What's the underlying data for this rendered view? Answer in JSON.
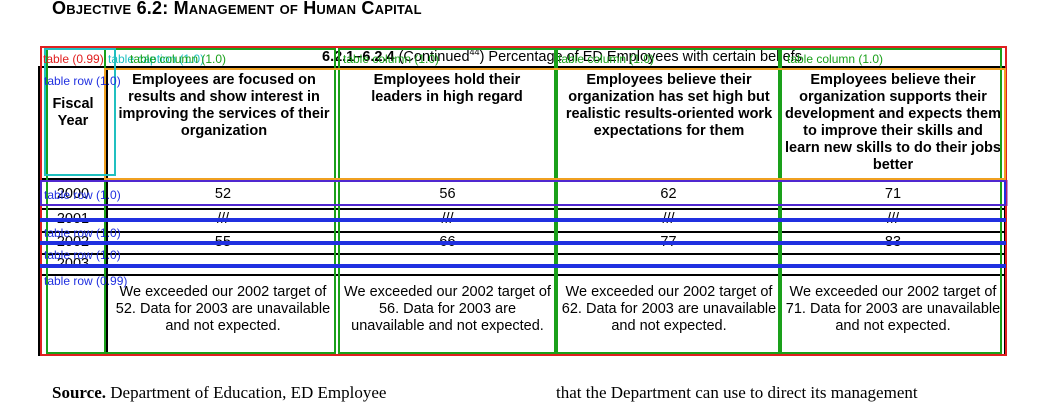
{
  "heading": "Objective 6.2: Management of Human Capital",
  "table": {
    "caption_number": "6.2.1–6.2.4",
    "caption_text_1": " (Continued",
    "caption_sup": "44",
    "caption_text_2": ") Percentage of ED Employees with certain beliefs",
    "col_header_year": "Fiscal Year",
    "col_headers": [
      "Employees are focused on results and show interest in improving the services of their organization",
      "Employees hold their leaders in high regard",
      "Employees believe their organization has set high but realistic results-oriented work expectations for them",
      "Employees believe their organization supports their development and expects them to improve their skills and learn new skills to do their jobs better"
    ],
    "rows": [
      {
        "year": "2000",
        "values": [
          "52",
          "56",
          "62",
          "71"
        ]
      },
      {
        "year": "2001",
        "values": [
          "///",
          "///",
          "///",
          "///"
        ]
      },
      {
        "year": "2002",
        "values": [
          "55",
          "66",
          "77",
          "83"
        ]
      },
      {
        "year": "2003",
        "values": [
          "",
          "",
          "",
          ""
        ]
      }
    ],
    "notes": [
      "We exceeded our 2002 target of 52. Data for 2003 are unavailable and not expected.",
      "We exceeded our 2002 target of 56. Data for 2003 are unavailable and not expected.",
      "We exceeded our 2002 target of 62. Data for 2003 are unavailable and not expected.",
      "We exceeded our 2002 target of 71. Data for 2003 are unavailable and not expected."
    ]
  },
  "annotations": {
    "table_label": "table (0.99)",
    "table_caption_label": "table caption (1.0)",
    "table_column_labels": [
      "table column (1.0)",
      "table column (1.0)",
      "table column (1.0)",
      "table column (1.0)"
    ],
    "table_row_labels": [
      "table row (1.0)",
      "table row (1.0)",
      "table row (1.0)",
      "table row (1.0)",
      "table row (0.99)"
    ],
    "colors": {
      "table": "#e02020",
      "column": "#1aa01a",
      "row": "#2030e0",
      "header": "#f0a020"
    }
  },
  "source": {
    "label": "Source.",
    "text": " Department of Education, ED Employee",
    "right_text": "that the Department can use to direct its management"
  }
}
